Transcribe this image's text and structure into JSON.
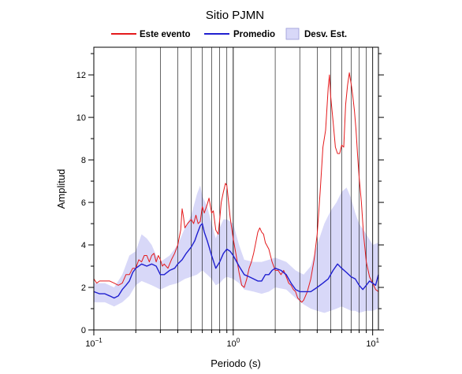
{
  "chart_data": {
    "type": "line",
    "title": "Sitio PJMN",
    "xlabel": "Periodo (s)",
    "ylabel": "Amplitud",
    "xscale": "log",
    "xlim": [
      0.1,
      11
    ],
    "ylim": [
      0,
      13.3
    ],
    "grid": true,
    "legend_position": "top",
    "x_ticks": [
      {
        "value": 0.1,
        "base": "10",
        "exp": "−1"
      },
      {
        "value": 1,
        "base": "10",
        "exp": "0"
      },
      {
        "value": 10,
        "base": "10",
        "exp": "1"
      }
    ],
    "y_ticks": [
      {
        "value": 0,
        "label": "0"
      },
      {
        "value": 2,
        "label": "2"
      },
      {
        "value": 4,
        "label": "4"
      },
      {
        "value": 6,
        "label": "6"
      },
      {
        "value": 8,
        "label": "8"
      },
      {
        "value": 10,
        "label": "10"
      },
      {
        "value": 12,
        "label": "12"
      }
    ],
    "series": [
      {
        "name": "Este evento",
        "color": "#e41a1c",
        "points": [
          [
            0.1,
            2.4
          ],
          [
            0.105,
            2.2
          ],
          [
            0.11,
            2.3
          ],
          [
            0.12,
            2.3
          ],
          [
            0.13,
            2.3
          ],
          [
            0.14,
            2.2
          ],
          [
            0.15,
            2.1
          ],
          [
            0.16,
            2.2
          ],
          [
            0.17,
            2.6
          ],
          [
            0.18,
            2.6
          ],
          [
            0.19,
            2.9
          ],
          [
            0.2,
            2.9
          ],
          [
            0.21,
            3.3
          ],
          [
            0.22,
            3.2
          ],
          [
            0.23,
            3.5
          ],
          [
            0.24,
            3.5
          ],
          [
            0.25,
            3.2
          ],
          [
            0.26,
            3.5
          ],
          [
            0.27,
            3.6
          ],
          [
            0.28,
            3.2
          ],
          [
            0.29,
            3.5
          ],
          [
            0.3,
            3.3
          ],
          [
            0.31,
            3.0
          ],
          [
            0.32,
            3.1
          ],
          [
            0.34,
            2.9
          ],
          [
            0.36,
            3.3
          ],
          [
            0.38,
            3.6
          ],
          [
            0.4,
            4.0
          ],
          [
            0.42,
            4.7
          ],
          [
            0.43,
            5.7
          ],
          [
            0.44,
            5.3
          ],
          [
            0.45,
            4.8
          ],
          [
            0.47,
            5.0
          ],
          [
            0.5,
            5.2
          ],
          [
            0.52,
            5.0
          ],
          [
            0.54,
            5.4
          ],
          [
            0.56,
            5.0
          ],
          [
            0.58,
            5.1
          ],
          [
            0.6,
            5.8
          ],
          [
            0.62,
            5.5
          ],
          [
            0.65,
            5.9
          ],
          [
            0.67,
            6.2
          ],
          [
            0.7,
            5.5
          ],
          [
            0.72,
            5.6
          ],
          [
            0.75,
            4.7
          ],
          [
            0.78,
            4.5
          ],
          [
            0.8,
            5.2
          ],
          [
            0.82,
            6.0
          ],
          [
            0.85,
            6.5
          ],
          [
            0.88,
            6.9
          ],
          [
            0.9,
            6.8
          ],
          [
            0.92,
            6.2
          ],
          [
            0.95,
            5.3
          ],
          [
            1.0,
            4.3
          ],
          [
            1.05,
            3.5
          ],
          [
            1.1,
            2.7
          ],
          [
            1.15,
            2.1
          ],
          [
            1.2,
            2.0
          ],
          [
            1.25,
            2.4
          ],
          [
            1.3,
            2.9
          ],
          [
            1.35,
            3.2
          ],
          [
            1.4,
            3.6
          ],
          [
            1.45,
            4.1
          ],
          [
            1.5,
            4.6
          ],
          [
            1.55,
            4.8
          ],
          [
            1.6,
            4.6
          ],
          [
            1.65,
            4.5
          ],
          [
            1.7,
            4.1
          ],
          [
            1.8,
            3.8
          ],
          [
            1.9,
            3.2
          ],
          [
            2.0,
            2.8
          ],
          [
            2.1,
            2.8
          ],
          [
            2.2,
            2.6
          ],
          [
            2.3,
            2.8
          ],
          [
            2.4,
            2.5
          ],
          [
            2.5,
            2.2
          ],
          [
            2.6,
            2.1
          ],
          [
            2.7,
            1.9
          ],
          [
            2.8,
            1.8
          ],
          [
            2.9,
            1.5
          ],
          [
            3.0,
            1.4
          ],
          [
            3.1,
            1.3
          ],
          [
            3.2,
            1.4
          ],
          [
            3.4,
            1.8
          ],
          [
            3.6,
            2.4
          ],
          [
            3.8,
            3.3
          ],
          [
            4.0,
            4.5
          ],
          [
            4.2,
            6.5
          ],
          [
            4.4,
            8.6
          ],
          [
            4.6,
            9.4
          ],
          [
            4.8,
            11.4
          ],
          [
            4.9,
            12.0
          ],
          [
            5.0,
            11.0
          ],
          [
            5.2,
            9.8
          ],
          [
            5.4,
            8.6
          ],
          [
            5.6,
            8.3
          ],
          [
            5.8,
            8.3
          ],
          [
            6.0,
            8.7
          ],
          [
            6.2,
            8.6
          ],
          [
            6.4,
            10.6
          ],
          [
            6.6,
            11.5
          ],
          [
            6.8,
            12.1
          ],
          [
            7.0,
            11.6
          ],
          [
            7.2,
            11.0
          ],
          [
            7.4,
            10.3
          ],
          [
            7.6,
            9.4
          ],
          [
            7.8,
            8.2
          ],
          [
            8.0,
            7.2
          ],
          [
            8.3,
            6.0
          ],
          [
            8.6,
            4.5
          ],
          [
            9.0,
            3.2
          ],
          [
            9.5,
            2.5
          ],
          [
            10.0,
            2.2
          ],
          [
            10.5,
            1.9
          ],
          [
            11.0,
            1.8
          ]
        ]
      },
      {
        "name": "Promedio",
        "color": "#1f1fd0",
        "points": [
          [
            0.1,
            1.8
          ],
          [
            0.11,
            1.7
          ],
          [
            0.12,
            1.7
          ],
          [
            0.13,
            1.6
          ],
          [
            0.14,
            1.5
          ],
          [
            0.15,
            1.6
          ],
          [
            0.16,
            1.9
          ],
          [
            0.17,
            2.1
          ],
          [
            0.18,
            2.3
          ],
          [
            0.19,
            2.7
          ],
          [
            0.2,
            2.9
          ],
          [
            0.21,
            3.0
          ],
          [
            0.22,
            3.1
          ],
          [
            0.24,
            3.0
          ],
          [
            0.26,
            3.1
          ],
          [
            0.28,
            3.0
          ],
          [
            0.3,
            2.6
          ],
          [
            0.32,
            2.6
          ],
          [
            0.35,
            2.8
          ],
          [
            0.38,
            2.9
          ],
          [
            0.4,
            3.1
          ],
          [
            0.43,
            3.3
          ],
          [
            0.46,
            3.6
          ],
          [
            0.5,
            3.9
          ],
          [
            0.53,
            4.2
          ],
          [
            0.55,
            4.5
          ],
          [
            0.58,
            4.9
          ],
          [
            0.6,
            5.0
          ],
          [
            0.62,
            4.6
          ],
          [
            0.65,
            4.2
          ],
          [
            0.7,
            3.5
          ],
          [
            0.75,
            2.9
          ],
          [
            0.8,
            3.2
          ],
          [
            0.85,
            3.6
          ],
          [
            0.9,
            3.8
          ],
          [
            0.95,
            3.7
          ],
          [
            1.0,
            3.5
          ],
          [
            1.1,
            3.0
          ],
          [
            1.2,
            2.6
          ],
          [
            1.3,
            2.5
          ],
          [
            1.4,
            2.4
          ],
          [
            1.5,
            2.3
          ],
          [
            1.6,
            2.3
          ],
          [
            1.7,
            2.6
          ],
          [
            1.8,
            2.6
          ],
          [
            1.9,
            2.8
          ],
          [
            2.0,
            2.9
          ],
          [
            2.2,
            2.8
          ],
          [
            2.4,
            2.6
          ],
          [
            2.6,
            2.2
          ],
          [
            2.8,
            1.9
          ],
          [
            3.0,
            1.8
          ],
          [
            3.3,
            1.8
          ],
          [
            3.6,
            1.8
          ],
          [
            4.0,
            2.0
          ],
          [
            4.4,
            2.2
          ],
          [
            4.8,
            2.4
          ],
          [
            5.2,
            2.8
          ],
          [
            5.6,
            3.1
          ],
          [
            6.0,
            2.9
          ],
          [
            6.5,
            2.7
          ],
          [
            7.0,
            2.5
          ],
          [
            7.5,
            2.4
          ],
          [
            8.0,
            2.1
          ],
          [
            8.5,
            1.9
          ],
          [
            9.0,
            2.1
          ],
          [
            9.5,
            2.3
          ],
          [
            10.0,
            2.2
          ],
          [
            10.5,
            2.1
          ],
          [
            11.0,
            2.6
          ]
        ]
      },
      {
        "name": "Desv. Est.",
        "color": "#d8d8f8",
        "band_upper": [
          [
            0.1,
            2.2
          ],
          [
            0.12,
            2.2
          ],
          [
            0.14,
            2.0
          ],
          [
            0.16,
            2.6
          ],
          [
            0.18,
            3.5
          ],
          [
            0.2,
            3.7
          ],
          [
            0.22,
            4.5
          ],
          [
            0.24,
            4.3
          ],
          [
            0.26,
            4.0
          ],
          [
            0.28,
            3.5
          ],
          [
            0.3,
            3.2
          ],
          [
            0.35,
            3.5
          ],
          [
            0.4,
            4.0
          ],
          [
            0.45,
            4.8
          ],
          [
            0.5,
            5.4
          ],
          [
            0.55,
            6.4
          ],
          [
            0.58,
            6.8
          ],
          [
            0.6,
            6.3
          ],
          [
            0.65,
            5.8
          ],
          [
            0.7,
            5.0
          ],
          [
            0.75,
            4.3
          ],
          [
            0.8,
            4.8
          ],
          [
            0.85,
            5.2
          ],
          [
            0.9,
            5.2
          ],
          [
            1.0,
            5.0
          ],
          [
            1.1,
            4.0
          ],
          [
            1.2,
            3.3
          ],
          [
            1.4,
            3.2
          ],
          [
            1.6,
            3.2
          ],
          [
            1.8,
            3.3
          ],
          [
            2.0,
            3.4
          ],
          [
            2.4,
            3.2
          ],
          [
            2.8,
            2.8
          ],
          [
            3.2,
            2.6
          ],
          [
            3.6,
            3.0
          ],
          [
            4.0,
            4.0
          ],
          [
            4.5,
            5.0
          ],
          [
            5.0,
            5.6
          ],
          [
            5.5,
            6.0
          ],
          [
            6.0,
            6.5
          ],
          [
            6.5,
            6.7
          ],
          [
            7.0,
            6.2
          ],
          [
            7.5,
            5.5
          ],
          [
            8.0,
            5.0
          ],
          [
            9.0,
            4.5
          ],
          [
            10.0,
            4.0
          ],
          [
            11.0,
            4.1
          ]
        ],
        "band_lower": [
          [
            0.1,
            1.3
          ],
          [
            0.12,
            1.3
          ],
          [
            0.14,
            1.1
          ],
          [
            0.16,
            1.3
          ],
          [
            0.18,
            1.6
          ],
          [
            0.2,
            2.1
          ],
          [
            0.22,
            2.3
          ],
          [
            0.24,
            2.2
          ],
          [
            0.26,
            2.1
          ],
          [
            0.28,
            2.0
          ],
          [
            0.3,
            1.9
          ],
          [
            0.35,
            2.1
          ],
          [
            0.4,
            2.2
          ],
          [
            0.45,
            2.4
          ],
          [
            0.5,
            2.5
          ],
          [
            0.55,
            2.6
          ],
          [
            0.6,
            2.8
          ],
          [
            0.65,
            2.6
          ],
          [
            0.7,
            2.4
          ],
          [
            0.75,
            2.1
          ],
          [
            0.8,
            2.2
          ],
          [
            0.85,
            2.4
          ],
          [
            0.9,
            2.5
          ],
          [
            1.0,
            2.4
          ],
          [
            1.1,
            2.2
          ],
          [
            1.2,
            1.9
          ],
          [
            1.4,
            1.8
          ],
          [
            1.6,
            1.7
          ],
          [
            1.8,
            1.8
          ],
          [
            2.0,
            2.0
          ],
          [
            2.4,
            1.9
          ],
          [
            2.8,
            1.5
          ],
          [
            3.2,
            1.2
          ],
          [
            3.6,
            1.0
          ],
          [
            4.0,
            0.9
          ],
          [
            4.5,
            0.8
          ],
          [
            5.0,
            0.9
          ],
          [
            5.5,
            1.0
          ],
          [
            6.0,
            1.1
          ],
          [
            6.5,
            1.0
          ],
          [
            7.0,
            0.9
          ],
          [
            7.5,
            0.9
          ],
          [
            8.0,
            0.8
          ],
          [
            9.0,
            0.9
          ],
          [
            10.0,
            0.9
          ],
          [
            11.0,
            1.0
          ]
        ]
      }
    ]
  },
  "legend": [
    {
      "label": "Este evento",
      "kind": "line",
      "color": "#e41a1c"
    },
    {
      "label": "Promedio",
      "kind": "line",
      "color": "#1f1fd0"
    },
    {
      "label": "Desv. Est.",
      "kind": "box",
      "color": "#d8d8f8"
    }
  ]
}
